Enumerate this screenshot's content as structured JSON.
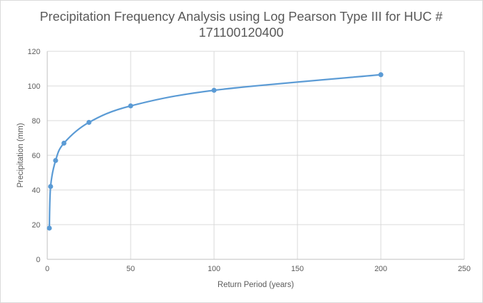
{
  "chart_data": {
    "type": "scatter",
    "title_line1": "Precipitation Frequency Analysis using Log Pearson Type III for HUC #",
    "title_line2": "171100120400",
    "xlabel": "Return Period (years)",
    "ylabel": "Precipitation (mm)",
    "xlim": [
      0,
      250
    ],
    "ylim": [
      0,
      120
    ],
    "x_ticks": [
      0,
      50,
      100,
      150,
      200,
      250
    ],
    "y_ticks": [
      0,
      20,
      40,
      60,
      80,
      100,
      120
    ],
    "grid": true,
    "smoothed_line": true,
    "series": [
      {
        "x": [
          1.25,
          2,
          5,
          10,
          25,
          50,
          100,
          200
        ],
        "y": [
          18,
          42,
          57,
          67,
          79,
          88.5,
          97.5,
          106.5
        ]
      }
    ],
    "colors": {
      "series": "#5b9bd5",
      "grid": "#d9d9d9",
      "text": "#595959"
    }
  }
}
